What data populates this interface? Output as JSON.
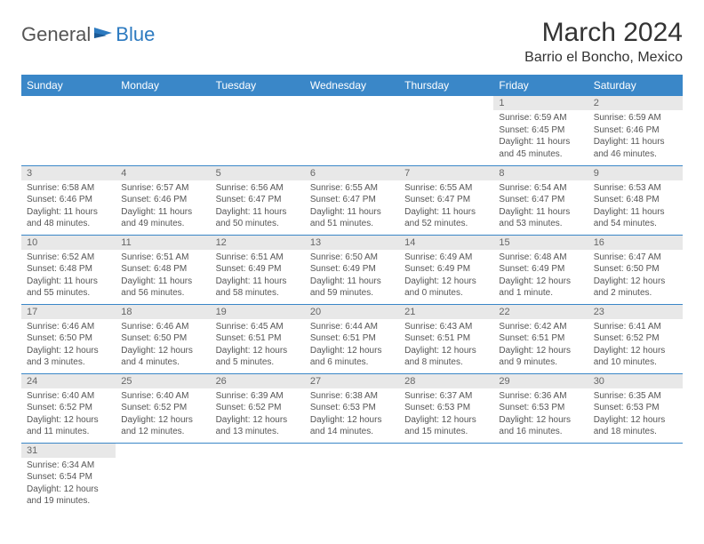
{
  "logo": {
    "text1": "General",
    "text2": "Blue"
  },
  "title": "March 2024",
  "location": "Barrio el Boncho, Mexico",
  "weekdays": [
    "Sunday",
    "Monday",
    "Tuesday",
    "Wednesday",
    "Thursday",
    "Friday",
    "Saturday"
  ],
  "colors": {
    "header_bg": "#3a87c8",
    "header_text": "#ffffff",
    "daynum_bg": "#e8e8e8",
    "daynum_text": "#666666",
    "body_text": "#555555",
    "border": "#3a87c8",
    "logo_blue": "#2c7ac0"
  },
  "weeks": [
    [
      null,
      null,
      null,
      null,
      null,
      {
        "n": "1",
        "sr": "6:59 AM",
        "ss": "6:45 PM",
        "dl": "11 hours and 45 minutes."
      },
      {
        "n": "2",
        "sr": "6:59 AM",
        "ss": "6:46 PM",
        "dl": "11 hours and 46 minutes."
      }
    ],
    [
      {
        "n": "3",
        "sr": "6:58 AM",
        "ss": "6:46 PM",
        "dl": "11 hours and 48 minutes."
      },
      {
        "n": "4",
        "sr": "6:57 AM",
        "ss": "6:46 PM",
        "dl": "11 hours and 49 minutes."
      },
      {
        "n": "5",
        "sr": "6:56 AM",
        "ss": "6:47 PM",
        "dl": "11 hours and 50 minutes."
      },
      {
        "n": "6",
        "sr": "6:55 AM",
        "ss": "6:47 PM",
        "dl": "11 hours and 51 minutes."
      },
      {
        "n": "7",
        "sr": "6:55 AM",
        "ss": "6:47 PM",
        "dl": "11 hours and 52 minutes."
      },
      {
        "n": "8",
        "sr": "6:54 AM",
        "ss": "6:47 PM",
        "dl": "11 hours and 53 minutes."
      },
      {
        "n": "9",
        "sr": "6:53 AM",
        "ss": "6:48 PM",
        "dl": "11 hours and 54 minutes."
      }
    ],
    [
      {
        "n": "10",
        "sr": "6:52 AM",
        "ss": "6:48 PM",
        "dl": "11 hours and 55 minutes."
      },
      {
        "n": "11",
        "sr": "6:51 AM",
        "ss": "6:48 PM",
        "dl": "11 hours and 56 minutes."
      },
      {
        "n": "12",
        "sr": "6:51 AM",
        "ss": "6:49 PM",
        "dl": "11 hours and 58 minutes."
      },
      {
        "n": "13",
        "sr": "6:50 AM",
        "ss": "6:49 PM",
        "dl": "11 hours and 59 minutes."
      },
      {
        "n": "14",
        "sr": "6:49 AM",
        "ss": "6:49 PM",
        "dl": "12 hours and 0 minutes."
      },
      {
        "n": "15",
        "sr": "6:48 AM",
        "ss": "6:49 PM",
        "dl": "12 hours and 1 minute."
      },
      {
        "n": "16",
        "sr": "6:47 AM",
        "ss": "6:50 PM",
        "dl": "12 hours and 2 minutes."
      }
    ],
    [
      {
        "n": "17",
        "sr": "6:46 AM",
        "ss": "6:50 PM",
        "dl": "12 hours and 3 minutes."
      },
      {
        "n": "18",
        "sr": "6:46 AM",
        "ss": "6:50 PM",
        "dl": "12 hours and 4 minutes."
      },
      {
        "n": "19",
        "sr": "6:45 AM",
        "ss": "6:51 PM",
        "dl": "12 hours and 5 minutes."
      },
      {
        "n": "20",
        "sr": "6:44 AM",
        "ss": "6:51 PM",
        "dl": "12 hours and 6 minutes."
      },
      {
        "n": "21",
        "sr": "6:43 AM",
        "ss": "6:51 PM",
        "dl": "12 hours and 8 minutes."
      },
      {
        "n": "22",
        "sr": "6:42 AM",
        "ss": "6:51 PM",
        "dl": "12 hours and 9 minutes."
      },
      {
        "n": "23",
        "sr": "6:41 AM",
        "ss": "6:52 PM",
        "dl": "12 hours and 10 minutes."
      }
    ],
    [
      {
        "n": "24",
        "sr": "6:40 AM",
        "ss": "6:52 PM",
        "dl": "12 hours and 11 minutes."
      },
      {
        "n": "25",
        "sr": "6:40 AM",
        "ss": "6:52 PM",
        "dl": "12 hours and 12 minutes."
      },
      {
        "n": "26",
        "sr": "6:39 AM",
        "ss": "6:52 PM",
        "dl": "12 hours and 13 minutes."
      },
      {
        "n": "27",
        "sr": "6:38 AM",
        "ss": "6:53 PM",
        "dl": "12 hours and 14 minutes."
      },
      {
        "n": "28",
        "sr": "6:37 AM",
        "ss": "6:53 PM",
        "dl": "12 hours and 15 minutes."
      },
      {
        "n": "29",
        "sr": "6:36 AM",
        "ss": "6:53 PM",
        "dl": "12 hours and 16 minutes."
      },
      {
        "n": "30",
        "sr": "6:35 AM",
        "ss": "6:53 PM",
        "dl": "12 hours and 18 minutes."
      }
    ],
    [
      {
        "n": "31",
        "sr": "6:34 AM",
        "ss": "6:54 PM",
        "dl": "12 hours and 19 minutes."
      },
      null,
      null,
      null,
      null,
      null,
      null
    ]
  ],
  "labels": {
    "sunrise": "Sunrise:",
    "sunset": "Sunset:",
    "daylight": "Daylight:"
  }
}
